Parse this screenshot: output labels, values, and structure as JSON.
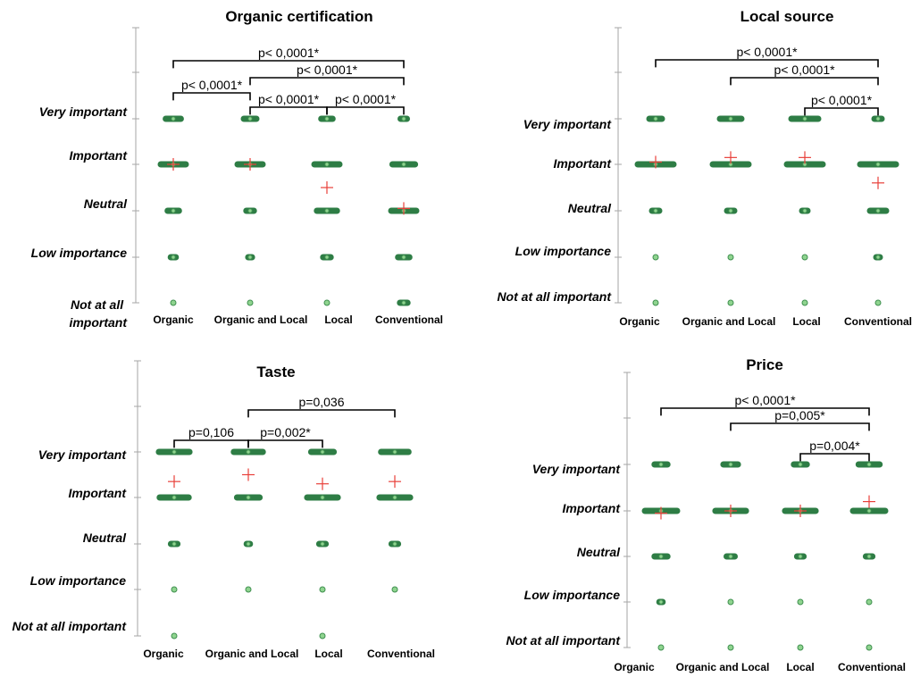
{
  "chart_data": [
    {
      "type": "scatter",
      "title": "Organic certification",
      "ylabels": [
        "Not at all important",
        "Low importance",
        "Neutral",
        "Important",
        "Very important"
      ],
      "categories": [
        "Organic",
        "Organic and Local",
        "Local",
        "Conventional"
      ],
      "bands": [
        {
          "level": 5,
          "widths": [
            0.6,
            0.5,
            0.45,
            0.25
          ]
        },
        {
          "level": 4,
          "widths": [
            1.0,
            1.0,
            1.0,
            0.9
          ]
        },
        {
          "level": 3,
          "widths": [
            0.45,
            0.3,
            0.8,
            1.0
          ]
        },
        {
          "level": 2,
          "widths": [
            0.2,
            0.15,
            0.3,
            0.45
          ]
        },
        {
          "level": 1,
          "widths": [
            0.0,
            0.0,
            0.1,
            0.3
          ]
        }
      ],
      "means": [
        4.0,
        4.0,
        3.5,
        3.05
      ],
      "comparisons": [
        {
          "from": 0,
          "to": 3,
          "label": "p< 0,0001*"
        },
        {
          "from": 1,
          "to": 3,
          "label": "p< 0,0001*"
        },
        {
          "from": 0,
          "to": 1,
          "label": "p< 0,0001*"
        },
        {
          "from": 1,
          "to": 2,
          "label": "p< 0,0001*"
        },
        {
          "from": 2,
          "to": 3,
          "label": "p< 0,0001*"
        }
      ]
    },
    {
      "type": "scatter",
      "title": "Local source",
      "ylabels": [
        "Not at all important",
        "Low importance",
        "Neutral",
        "Important",
        "Very important"
      ],
      "categories": [
        "Organic",
        "Organic and Local",
        "Local",
        "Conventional"
      ],
      "bands": [
        {
          "level": 5,
          "widths": [
            0.35,
            0.6,
            0.75,
            0.2
          ]
        },
        {
          "level": 4,
          "widths": [
            1.0,
            1.0,
            1.0,
            1.0
          ]
        },
        {
          "level": 3,
          "widths": [
            0.2,
            0.2,
            0.15,
            0.45
          ]
        },
        {
          "level": 2,
          "widths": [
            0.0,
            0.0,
            0.0,
            0.1
          ]
        },
        {
          "level": 1,
          "widths": [
            0.0,
            0.0,
            0.0,
            0.0
          ]
        }
      ],
      "means": [
        4.05,
        4.15,
        4.15,
        3.6
      ],
      "comparisons": [
        {
          "from": 0,
          "to": 3,
          "label": "p< 0,0001*"
        },
        {
          "from": 1,
          "to": 3,
          "label": "p< 0,0001*"
        },
        {
          "from": 2,
          "to": 3,
          "label": "p< 0,0001*"
        }
      ]
    },
    {
      "type": "scatter",
      "title": "Taste",
      "ylabels": [
        "Not at all important",
        "Low importance",
        "Neutral",
        "Important",
        "Very important"
      ],
      "categories": [
        "Organic",
        "Organic and Local",
        "Local",
        "Conventional"
      ],
      "bands": [
        {
          "level": 5,
          "widths": [
            0.95,
            0.9,
            0.7,
            0.85
          ]
        },
        {
          "level": 4,
          "widths": [
            0.9,
            0.7,
            0.95,
            0.95
          ]
        },
        {
          "level": 3,
          "widths": [
            0.2,
            0.1,
            0.2,
            0.2
          ]
        },
        {
          "level": 2,
          "widths": [
            0.05,
            0.0,
            0.05,
            0.05
          ]
        },
        {
          "level": 1,
          "widths": [
            0.0,
            -1,
            0.0,
            -1
          ]
        }
      ],
      "means": [
        4.35,
        4.5,
        4.3,
        4.35
      ],
      "comparisons": [
        {
          "from": 1,
          "to": 3,
          "label": "p=0,036"
        },
        {
          "from": 0,
          "to": 1,
          "label": "p=0,106"
        },
        {
          "from": 1,
          "to": 2,
          "label": "p=0,002*"
        }
      ]
    },
    {
      "type": "scatter",
      "title": "Price",
      "ylabels": [
        "Not at all important",
        "Low importance",
        "Neutral",
        "Important",
        "Very important"
      ],
      "categories": [
        "Organic",
        "Organic and Local",
        "Local",
        "Conventional"
      ],
      "bands": [
        {
          "level": 5,
          "widths": [
            0.4,
            0.45,
            0.4,
            0.65
          ]
        },
        {
          "level": 4,
          "widths": [
            1.0,
            0.95,
            0.95,
            1.0
          ]
        },
        {
          "level": 3,
          "widths": [
            0.4,
            0.25,
            0.2,
            0.2
          ]
        },
        {
          "level": 2,
          "widths": [
            0.1,
            0.05,
            0.05,
            0.05
          ]
        },
        {
          "level": 1,
          "widths": [
            0.0,
            0.0,
            0.0,
            0.0
          ]
        }
      ],
      "means": [
        3.95,
        4.0,
        4.0,
        4.2
      ],
      "comparisons": [
        {
          "from": 0,
          "to": 3,
          "label": "p< 0,0001*"
        },
        {
          "from": 1,
          "to": 3,
          "label": "p=0,005*"
        },
        {
          "from": 2,
          "to": 3,
          "label": "p=0,004*"
        }
      ]
    }
  ]
}
